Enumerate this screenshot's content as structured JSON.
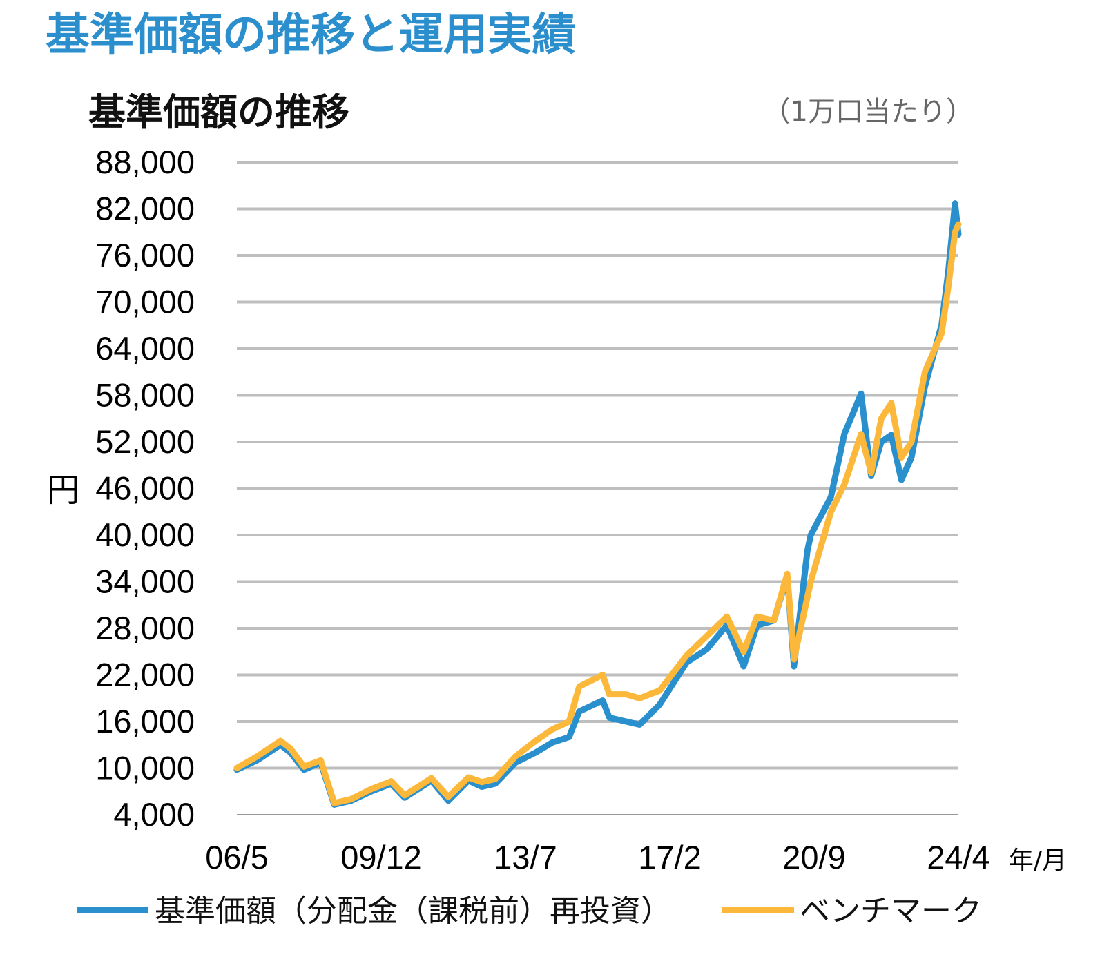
{
  "page_title": "基準価額の推移と運用実績",
  "colors": {
    "title": "#2B8FCD",
    "fund": "#2A90CD",
    "benchmark": "#FBB83A",
    "grid": "#BEBEBE"
  },
  "chart_data": {
    "type": "line",
    "title": "基準価額の推移",
    "unit_note": "（1万口当たり）",
    "ylabel": "円",
    "xlabel": "年/月",
    "ylim": [
      4000,
      88000
    ],
    "yticks": [
      "4,000",
      "10,000",
      "16,000",
      "22,000",
      "28,000",
      "34,000",
      "40,000",
      "46,000",
      "52,000",
      "58,000",
      "64,000",
      "70,000",
      "76,000",
      "82,000",
      "88,000"
    ],
    "ytick_values": [
      4000,
      10000,
      16000,
      22000,
      28000,
      34000,
      40000,
      46000,
      52000,
      58000,
      64000,
      70000,
      76000,
      82000,
      88000
    ],
    "xlim": [
      "2006-05",
      "2024-04"
    ],
    "xticks": [
      "06/5",
      "09/12",
      "13/7",
      "17/2",
      "20/9",
      "24/4"
    ],
    "xtick_dates": [
      "2006-05",
      "2009-12",
      "2013-07",
      "2017-02",
      "2020-09",
      "2024-04"
    ],
    "grid": true,
    "legend_position": "bottom",
    "series": [
      {
        "name": "基準価額（分配金（課税前）再投資）",
        "color": "#2A90CD",
        "points": [
          [
            "2006-05",
            9800
          ],
          [
            "2006-11",
            11000
          ],
          [
            "2007-06",
            13000
          ],
          [
            "2007-09",
            12000
          ],
          [
            "2008-01",
            9800
          ],
          [
            "2008-06",
            10700
          ],
          [
            "2008-10",
            5300
          ],
          [
            "2009-03",
            5800
          ],
          [
            "2009-09",
            7000
          ],
          [
            "2010-03",
            8000
          ],
          [
            "2010-07",
            6200
          ],
          [
            "2011-03",
            8400
          ],
          [
            "2011-08",
            5800
          ],
          [
            "2012-02",
            8400
          ],
          [
            "2012-06",
            7600
          ],
          [
            "2012-10",
            8000
          ],
          [
            "2013-04",
            10700
          ],
          [
            "2013-10",
            12000
          ],
          [
            "2014-03",
            13300
          ],
          [
            "2014-08",
            14000
          ],
          [
            "2014-11",
            17300
          ],
          [
            "2015-06",
            18700
          ],
          [
            "2015-08",
            16500
          ],
          [
            "2016-01",
            16000
          ],
          [
            "2016-05",
            15600
          ],
          [
            "2016-11",
            18200
          ],
          [
            "2017-07",
            23600
          ],
          [
            "2018-01",
            25300
          ],
          [
            "2018-07",
            28400
          ],
          [
            "2018-12",
            23100
          ],
          [
            "2019-04",
            28400
          ],
          [
            "2019-09",
            29000
          ],
          [
            "2020-01",
            34700
          ],
          [
            "2020-03",
            23100
          ],
          [
            "2020-07",
            38000
          ],
          [
            "2020-08",
            40000
          ],
          [
            "2021-02",
            44900
          ],
          [
            "2021-06",
            53000
          ],
          [
            "2021-11",
            58200
          ],
          [
            "2022-02",
            47600
          ],
          [
            "2022-05",
            52000
          ],
          [
            "2022-08",
            52900
          ],
          [
            "2022-11",
            47100
          ],
          [
            "2023-02",
            50000
          ],
          [
            "2023-06",
            59100
          ],
          [
            "2023-11",
            67100
          ],
          [
            "2024-01",
            74000
          ],
          [
            "2024-03",
            82700
          ],
          [
            "2024-04",
            78700
          ]
        ]
      },
      {
        "name": "ベンチマーク",
        "color": "#FBB83A",
        "points": [
          [
            "2006-05",
            10000
          ],
          [
            "2006-11",
            11500
          ],
          [
            "2007-06",
            13500
          ],
          [
            "2007-09",
            12500
          ],
          [
            "2008-01",
            10200
          ],
          [
            "2008-06",
            11000
          ],
          [
            "2008-10",
            5500
          ],
          [
            "2009-03",
            6000
          ],
          [
            "2009-09",
            7300
          ],
          [
            "2010-03",
            8300
          ],
          [
            "2010-07",
            6500
          ],
          [
            "2011-03",
            8700
          ],
          [
            "2011-08",
            6300
          ],
          [
            "2012-02",
            8800
          ],
          [
            "2012-06",
            8200
          ],
          [
            "2012-10",
            8600
          ],
          [
            "2013-04",
            11500
          ],
          [
            "2013-10",
            13500
          ],
          [
            "2014-03",
            15000
          ],
          [
            "2014-08",
            16000
          ],
          [
            "2014-11",
            20500
          ],
          [
            "2015-06",
            22000
          ],
          [
            "2015-08",
            19500
          ],
          [
            "2016-01",
            19500
          ],
          [
            "2016-05",
            19000
          ],
          [
            "2016-11",
            20000
          ],
          [
            "2017-07",
            24500
          ],
          [
            "2018-01",
            27000
          ],
          [
            "2018-07",
            29500
          ],
          [
            "2018-12",
            25000
          ],
          [
            "2019-04",
            29500
          ],
          [
            "2019-09",
            29000
          ],
          [
            "2020-01",
            35000
          ],
          [
            "2020-03",
            24000
          ],
          [
            "2020-07",
            32000
          ],
          [
            "2020-08",
            34000
          ],
          [
            "2021-02",
            43000
          ],
          [
            "2021-06",
            46500
          ],
          [
            "2021-11",
            53000
          ],
          [
            "2022-02",
            48000
          ],
          [
            "2022-05",
            55000
          ],
          [
            "2022-08",
            57000
          ],
          [
            "2022-11",
            50000
          ],
          [
            "2023-02",
            52000
          ],
          [
            "2023-06",
            61000
          ],
          [
            "2023-11",
            66000
          ],
          [
            "2024-01",
            72000
          ],
          [
            "2024-03",
            79000
          ],
          [
            "2024-04",
            80000
          ]
        ]
      }
    ]
  }
}
